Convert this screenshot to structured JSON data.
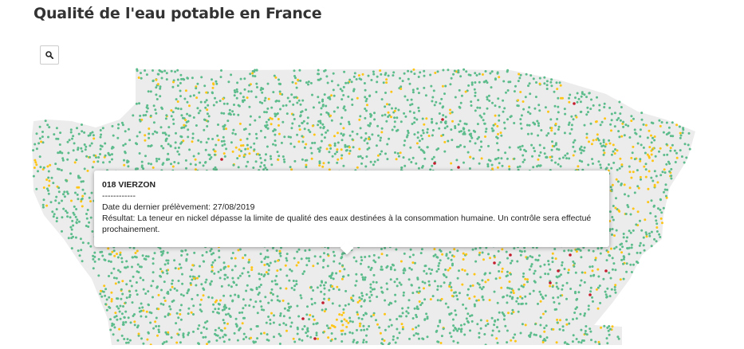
{
  "page": {
    "title": "Qualité de l'eau potable en France"
  },
  "search": {
    "icon": "search-icon"
  },
  "map": {
    "colors": {
      "land": "#ececec",
      "conforme": "#5cbc8c",
      "non_conforme_sans_risque": "#fdc516",
      "non_conforme_restriction": "#c31c2c"
    }
  },
  "tooltip": {
    "title": "018 VIERZON",
    "separator": "------------",
    "date_line": "Date du dernier prélèvement: 27/08/2019",
    "result_line": "Résultat: La teneur en nickel dépasse la limite de qualité des eaux destinées à la consommation humaine. Un contrôle sera effectué prochainement."
  }
}
